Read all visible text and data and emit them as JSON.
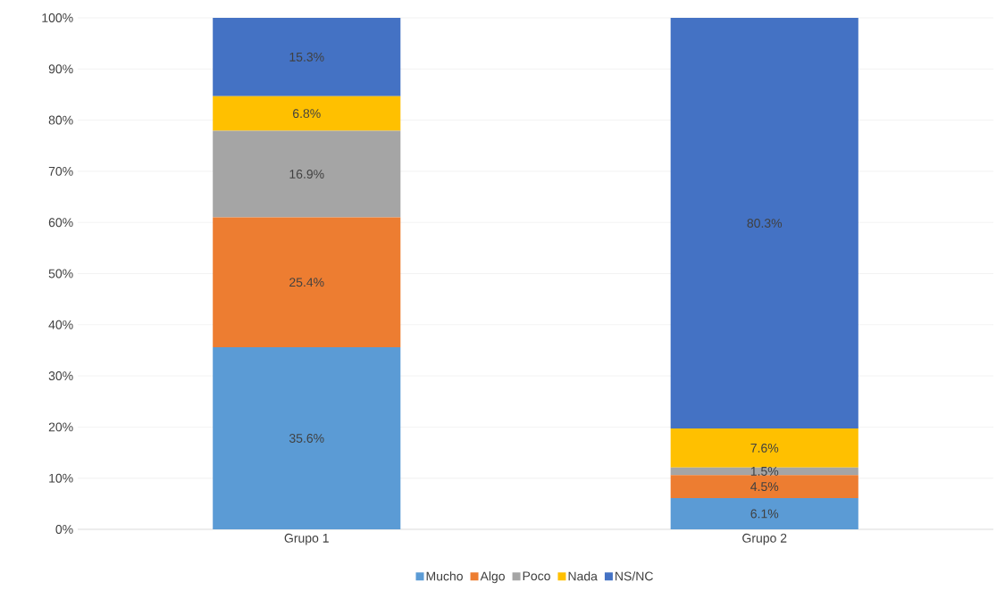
{
  "chart_data": {
    "type": "bar",
    "stacked": true,
    "categories": [
      "Grupo 1",
      "Grupo 2"
    ],
    "series": [
      {
        "name": "Mucho",
        "color": "#5b9bd5",
        "values": [
          35.6,
          6.1
        ],
        "value_labels": [
          "35.6%",
          "6.1%"
        ]
      },
      {
        "name": "Algo",
        "color": "#ed7d31",
        "values": [
          25.4,
          4.5
        ],
        "value_labels": [
          "25.4%",
          "4.5%"
        ]
      },
      {
        "name": "Poco",
        "color": "#a5a5a5",
        "values": [
          16.9,
          1.5
        ],
        "value_labels": [
          "16.9%",
          "1.5%"
        ]
      },
      {
        "name": "Nada",
        "color": "#ffc000",
        "values": [
          6.8,
          7.6
        ],
        "value_labels": [
          "6.8%",
          "7.6%"
        ]
      },
      {
        "name": "NS/NC",
        "color": "#4472c4",
        "values": [
          15.3,
          80.3
        ],
        "value_labels": [
          "15.3%",
          "80.3%"
        ]
      }
    ],
    "ylim": [
      0,
      100
    ],
    "yticks": [
      {
        "value": 0,
        "label": "0%"
      },
      {
        "value": 10,
        "label": "10%"
      },
      {
        "value": 20,
        "label": "20%"
      },
      {
        "value": 30,
        "label": "30%"
      },
      {
        "value": 40,
        "label": "40%"
      },
      {
        "value": 50,
        "label": "50%"
      },
      {
        "value": 60,
        "label": "60%"
      },
      {
        "value": 70,
        "label": "70%"
      },
      {
        "value": 80,
        "label": "80%"
      },
      {
        "value": 90,
        "label": "90%"
      },
      {
        "value": 100,
        "label": "100%"
      }
    ],
    "grid": "y",
    "legend": "bottom"
  }
}
